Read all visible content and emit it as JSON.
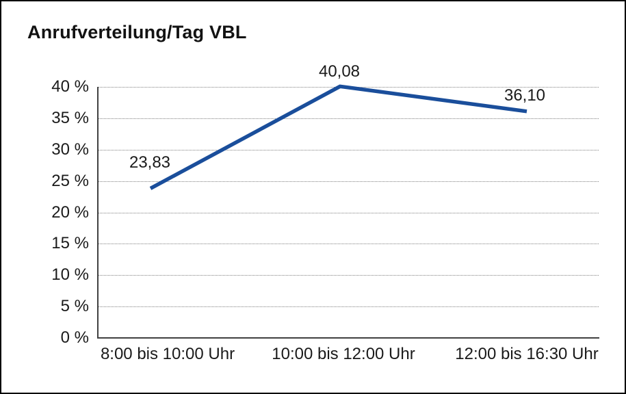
{
  "window": {
    "background": "#ffffff",
    "border_color": "#000000"
  },
  "chart_data": {
    "type": "line",
    "title": "Anrufverteilung/Tag VBL",
    "categories": [
      "8:00 bis 10:00 Uhr",
      "10:00 bis 12:00 Uhr",
      "12:00 bis 16:30 Uhr"
    ],
    "values": [
      23.83,
      40.08,
      36.1
    ],
    "value_labels": [
      "23,83",
      "40,08",
      "36,10"
    ],
    "xlabel": "",
    "ylabel": "",
    "ylim": [
      0,
      40
    ],
    "ytick_step": 5,
    "ytick_labels": [
      "0 %",
      "5 %",
      "10 %",
      "15 %",
      "20 %",
      "25 %",
      "30 %",
      "35 %",
      "40 %"
    ],
    "grid": "horizontal-dotted",
    "grid_color": "#808080",
    "axis_color": "#404040",
    "line_color": "#1a4e9b",
    "legend": "none",
    "value_label_position": "above"
  }
}
